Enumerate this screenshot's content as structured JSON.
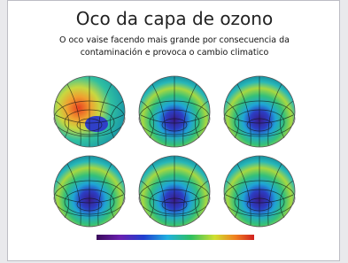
{
  "slide": {
    "title": "Oco da capa de ozono",
    "subtitle": "O oco vaise facendo mais grande por consecuencia da contaminación e provoca o cambio climatico"
  }
}
